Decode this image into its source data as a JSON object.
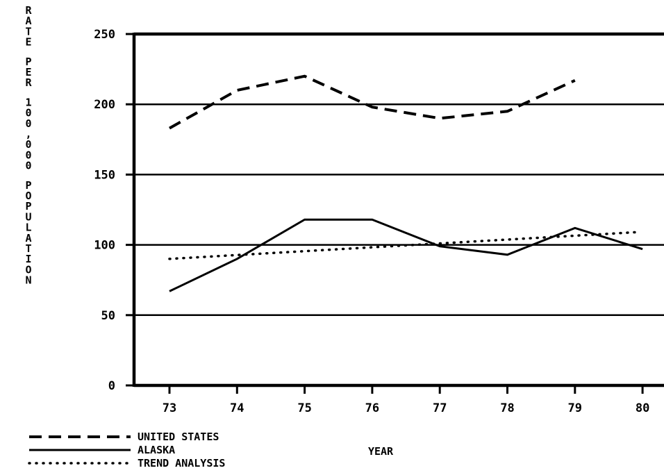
{
  "chart_data": {
    "type": "line",
    "title": "",
    "xlabel": "YEAR",
    "ylabel": "RATE PER 100,000 POPULATION",
    "ylim": [
      0,
      250
    ],
    "yticks": [
      0,
      50,
      100,
      150,
      200,
      250
    ],
    "x_tick_labels": [
      "73",
      "74",
      "75",
      "76",
      "77",
      "78",
      "79",
      "80"
    ],
    "grid": "horizontal",
    "legend_position": "bottom-left",
    "series": [
      {
        "name": "UNITED STATES",
        "style": "dashed",
        "x": [
          73,
          74,
          75,
          76,
          77,
          78,
          79
        ],
        "values": [
          183,
          210,
          220,
          198,
          190,
          195,
          217
        ]
      },
      {
        "name": "ALASKA",
        "style": "solid",
        "x": [
          73,
          74,
          75,
          76,
          77,
          78,
          79,
          80
        ],
        "values": [
          67,
          90,
          118,
          118,
          99,
          93,
          112,
          97
        ]
      },
      {
        "name": "TREND ANALYSIS",
        "style": "dotted",
        "x": [
          73,
          79.9
        ],
        "values": [
          90,
          109
        ]
      }
    ]
  }
}
